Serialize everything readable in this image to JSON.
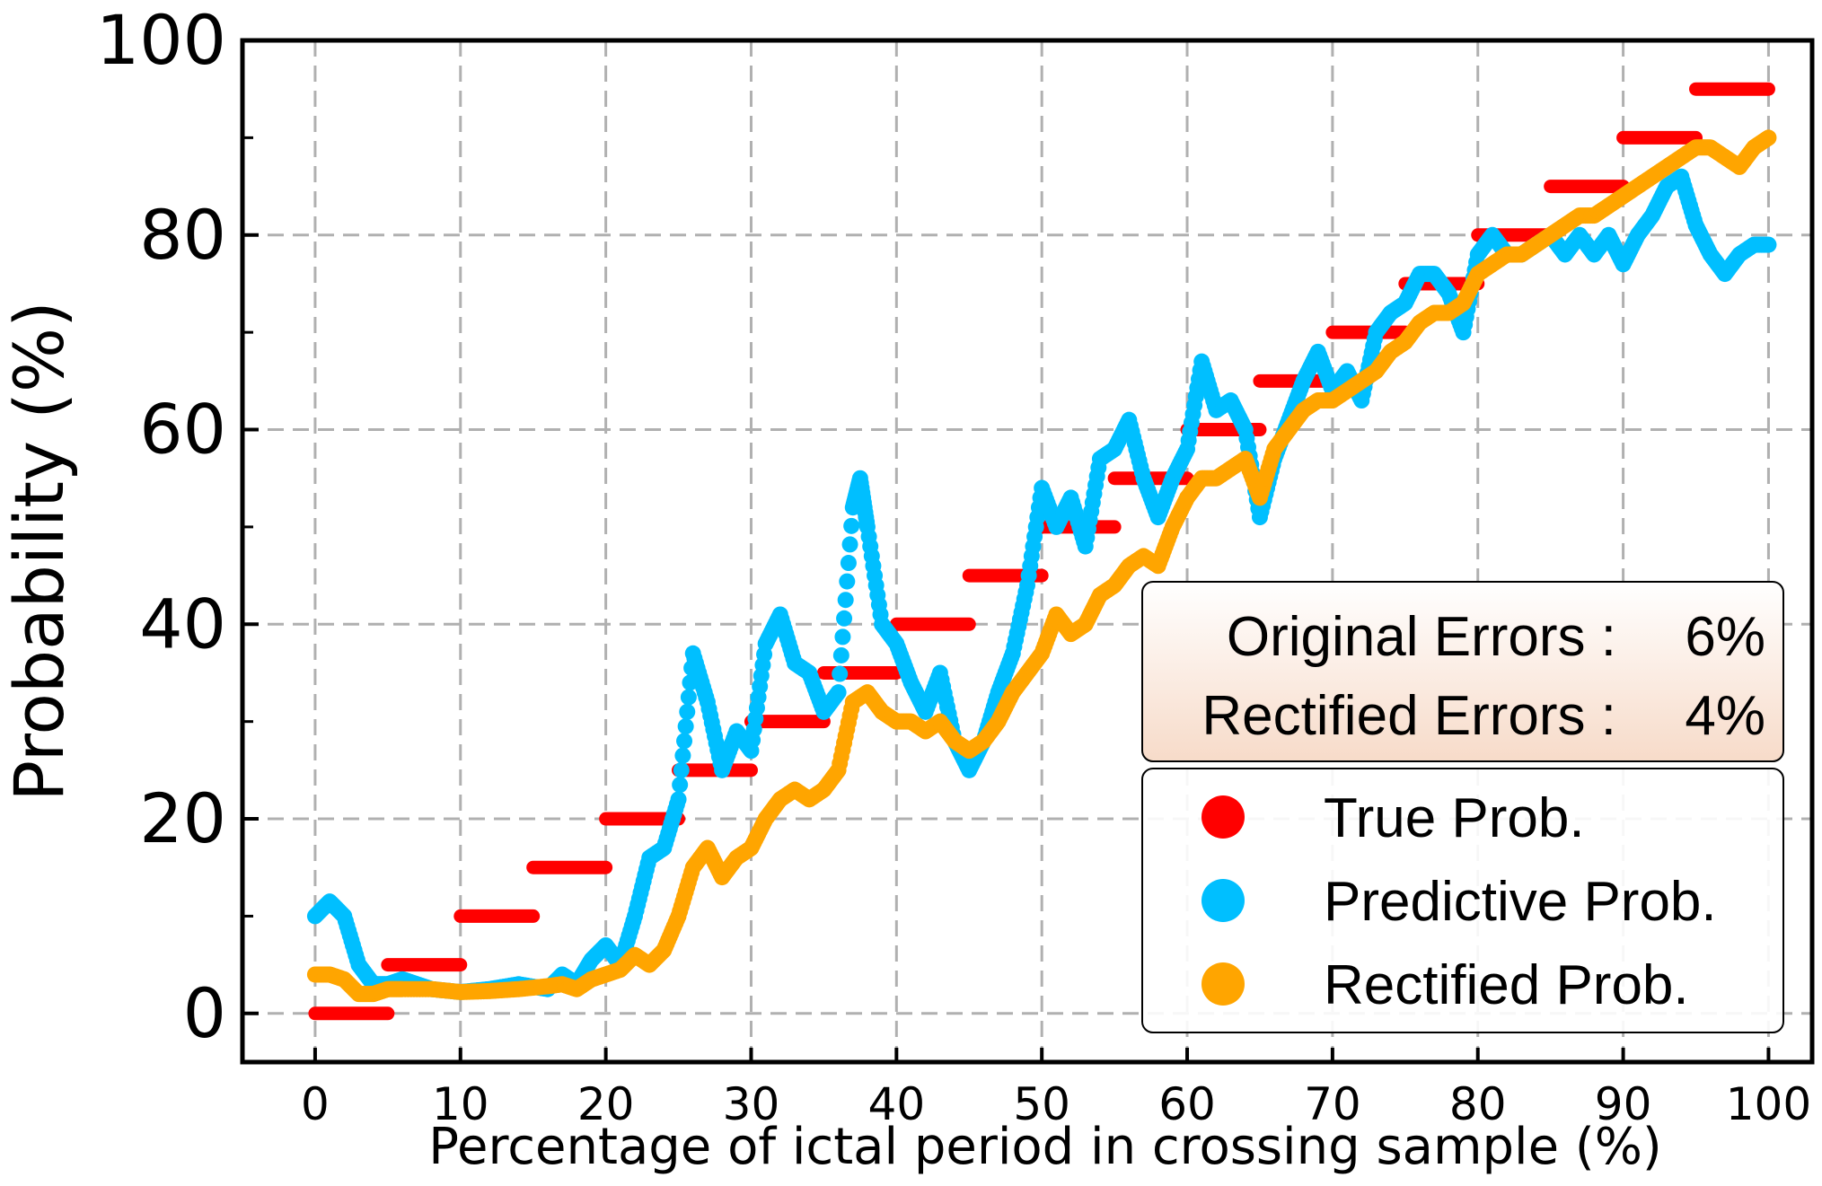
{
  "chart_data": {
    "type": "scatter",
    "xlabel": "Percentage of ictal period in crossing sample (%)",
    "ylabel": "Probability (%)",
    "xlim": [
      -5,
      103
    ],
    "ylim": [
      -5,
      100
    ],
    "x_ticks": [
      0,
      10,
      20,
      30,
      40,
      50,
      60,
      70,
      80,
      90,
      100
    ],
    "y_ticks": [
      0,
      20,
      40,
      60,
      80,
      100
    ],
    "y_minor_ticks": [
      10,
      30,
      50,
      70,
      90
    ],
    "grid": true,
    "legend_position": "lower-right",
    "error_box": {
      "original_label": "Original Errors :",
      "original_value": "6%",
      "rectified_label": "Rectified Errors :",
      "rectified_value": "4%"
    },
    "series": [
      {
        "name": "True Prob.",
        "color": "#ff0000",
        "style": "step-segments",
        "segments": [
          {
            "x0": 0,
            "x1": 5,
            "y": 0
          },
          {
            "x0": 5,
            "x1": 10,
            "y": 5
          },
          {
            "x0": 10,
            "x1": 15,
            "y": 10
          },
          {
            "x0": 15,
            "x1": 20,
            "y": 15
          },
          {
            "x0": 20,
            "x1": 25,
            "y": 20
          },
          {
            "x0": 25,
            "x1": 30,
            "y": 25
          },
          {
            "x0": 30,
            "x1": 35,
            "y": 30
          },
          {
            "x0": 35,
            "x1": 40,
            "y": 35
          },
          {
            "x0": 40,
            "x1": 45,
            "y": 40
          },
          {
            "x0": 45,
            "x1": 50,
            "y": 45
          },
          {
            "x0": 50,
            "x1": 55,
            "y": 50
          },
          {
            "x0": 55,
            "x1": 60,
            "y": 55
          },
          {
            "x0": 60,
            "x1": 65,
            "y": 60
          },
          {
            "x0": 65,
            "x1": 70,
            "y": 65
          },
          {
            "x0": 70,
            "x1": 75,
            "y": 70
          },
          {
            "x0": 75,
            "x1": 80,
            "y": 75
          },
          {
            "x0": 80,
            "x1": 85,
            "y": 80
          },
          {
            "x0": 85,
            "x1": 90,
            "y": 85
          },
          {
            "x0": 90,
            "x1": 95,
            "y": 90
          },
          {
            "x0": 95,
            "x1": 100,
            "y": 95
          }
        ]
      },
      {
        "name": "Predictive Prob.",
        "color": "#00bfff",
        "x": [
          0,
          1,
          2,
          3,
          4,
          5,
          6,
          7,
          8,
          10,
          12,
          14,
          16,
          17,
          18,
          19,
          20,
          21,
          22,
          23,
          24,
          25,
          26,
          27,
          28,
          29,
          30,
          31,
          32,
          33,
          34,
          35,
          36,
          37,
          37.5,
          38,
          39,
          40,
          41,
          42,
          43,
          44,
          45,
          46,
          47,
          48,
          49,
          50,
          51,
          52,
          53,
          54,
          55,
          56,
          57,
          58,
          59,
          60,
          61,
          62,
          63,
          64,
          65,
          66,
          67,
          68,
          69,
          70,
          71,
          72,
          73,
          74,
          75,
          76,
          77,
          78,
          79,
          80,
          81,
          82,
          83,
          84,
          85,
          86,
          87,
          88,
          89,
          90,
          91,
          92,
          93,
          94,
          95,
          96,
          97,
          98,
          99,
          100
        ],
        "y": [
          10,
          11.5,
          10,
          5,
          3,
          3,
          3.5,
          3,
          2.5,
          2.2,
          2.5,
          3,
          2.5,
          4,
          3,
          5.5,
          7,
          5,
          10,
          16,
          17,
          22,
          37,
          32,
          25,
          29,
          27,
          38,
          41,
          36,
          35,
          31,
          33,
          52,
          55,
          50,
          40,
          38,
          34,
          31,
          35,
          28,
          25,
          28,
          33,
          37,
          44,
          54,
          50,
          53,
          48,
          57,
          58,
          61,
          55,
          51,
          55,
          58,
          67,
          62,
          63,
          60,
          51,
          57,
          61,
          65,
          68,
          64,
          66,
          63,
          70,
          72,
          73,
          76,
          76,
          74,
          70,
          78,
          80,
          78,
          78,
          79,
          80,
          78,
          80,
          78,
          80,
          77,
          80,
          82,
          85,
          86,
          81,
          78,
          76,
          78,
          79,
          79
        ]
      },
      {
        "name": "Rectified Prob.",
        "color": "#ffa500",
        "x": [
          0,
          1,
          2,
          3,
          4,
          5,
          6,
          8,
          10,
          12,
          14,
          16,
          17,
          18,
          19,
          20,
          21,
          22,
          23,
          24,
          25,
          26,
          27,
          28,
          29,
          30,
          31,
          32,
          33,
          34,
          35,
          36,
          37,
          38,
          39,
          40,
          41,
          42,
          43,
          44,
          45,
          46,
          47,
          48,
          49,
          50,
          51,
          52,
          53,
          54,
          55,
          56,
          57,
          58,
          59,
          60,
          61,
          62,
          63,
          64,
          65,
          66,
          67,
          68,
          69,
          70,
          71,
          72,
          73,
          74,
          75,
          76,
          77,
          78,
          79,
          80,
          81,
          82,
          83,
          84,
          85,
          86,
          87,
          88,
          89,
          90,
          91,
          92,
          93,
          94,
          95,
          96,
          97,
          98,
          99,
          100
        ],
        "y": [
          4,
          4,
          3.5,
          2,
          2,
          2.5,
          2.5,
          2.5,
          2.2,
          2.3,
          2.5,
          2.8,
          3,
          2.5,
          3.5,
          4,
          4.5,
          6,
          5,
          6.5,
          10,
          15,
          17,
          14,
          16,
          17,
          20,
          22,
          23,
          22,
          23,
          25,
          32,
          33,
          31,
          30,
          30,
          29,
          30,
          28,
          27,
          28,
          30,
          33,
          35,
          37,
          41,
          39,
          40,
          43,
          44,
          46,
          47,
          46,
          50,
          53,
          55,
          55,
          56,
          57,
          53,
          58,
          60,
          62,
          63,
          63,
          64,
          65,
          66,
          68,
          69,
          71,
          72,
          72,
          73,
          76,
          77,
          78,
          78,
          79,
          80,
          81,
          82,
          82,
          83,
          84,
          85,
          86,
          87,
          88,
          89,
          89,
          88,
          87,
          89,
          90
        ]
      }
    ]
  }
}
